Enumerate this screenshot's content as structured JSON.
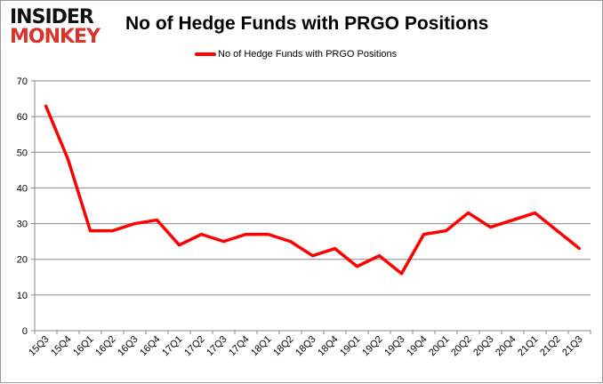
{
  "logo": {
    "line1": "INSIDER",
    "line2": "MONKEY"
  },
  "chart_data": {
    "type": "line",
    "title": "No of Hedge Funds with PRGO Positions",
    "xlabel": "",
    "ylabel": "",
    "ylim": [
      0,
      70
    ],
    "yticks": [
      0,
      10,
      20,
      30,
      40,
      50,
      60,
      70
    ],
    "grid": true,
    "legend_placement": "top",
    "categories": [
      "15Q3",
      "15Q4",
      "16Q1",
      "16Q2",
      "16Q3",
      "16Q4",
      "17Q1",
      "17Q2",
      "17Q3",
      "17Q4",
      "18Q1",
      "18Q2",
      "18Q3",
      "18Q4",
      "19Q1",
      "19Q2",
      "19Q3",
      "19Q4",
      "20Q1",
      "20Q2",
      "20Q3",
      "20Q4",
      "21Q1",
      "21Q2",
      "21Q3"
    ],
    "series": [
      {
        "name": "No of Hedge Funds with PRGO Positions",
        "color": "#ff0000",
        "values": [
          63,
          48,
          28,
          28,
          30,
          31,
          24,
          27,
          25,
          27,
          27,
          25,
          21,
          23,
          18,
          21,
          16,
          27,
          28,
          33,
          29,
          31,
          33,
          28,
          23
        ]
      }
    ]
  }
}
